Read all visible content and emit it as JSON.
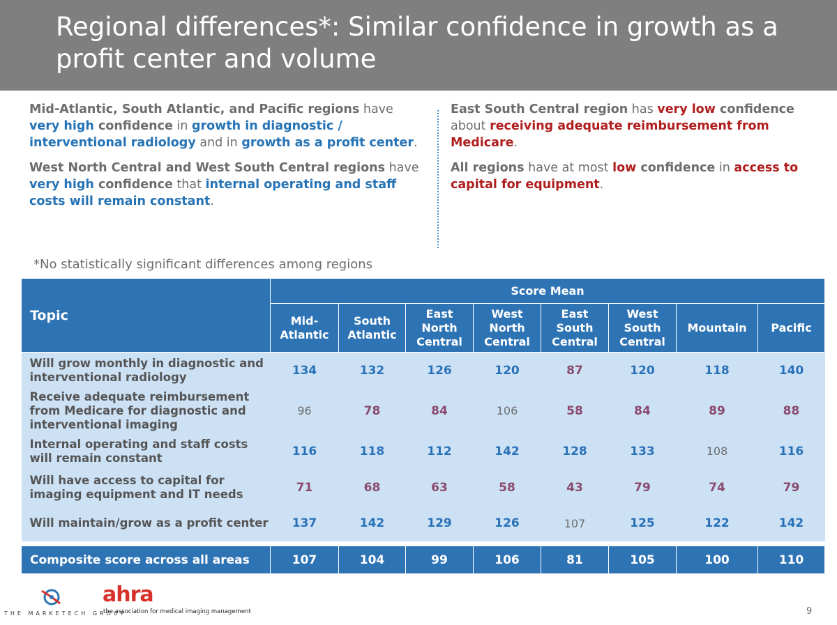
{
  "title": "Regional differences*: Similar confidence in growth as a profit center and volume",
  "left_column": {
    "p1": [
      {
        "t": "Mid-Atlantic, South Atlantic, and Pacific regions",
        "s": "gray-bold"
      },
      {
        "t": " have ",
        "s": "gray"
      },
      {
        "t": "very high",
        "s": "blue"
      },
      {
        "t": " confidence",
        "s": "gray-bold"
      },
      {
        "t": " in ",
        "s": "gray"
      },
      {
        "t": "growth in diagnostic / interventional radiology",
        "s": "blue"
      },
      {
        "t": " and in ",
        "s": "gray"
      },
      {
        "t": "growth as a profit center",
        "s": "blue"
      },
      {
        "t": ".",
        "s": "gray"
      }
    ],
    "p2": [
      {
        "t": "West North Central and West South Central regions",
        "s": "gray-bold"
      },
      {
        "t": " have ",
        "s": "gray"
      },
      {
        "t": "very high",
        "s": "blue"
      },
      {
        "t": " confidence",
        "s": "gray-bold"
      },
      {
        "t": " that ",
        "s": "gray"
      },
      {
        "t": "internal operating and staff costs will remain constant",
        "s": "blue"
      },
      {
        "t": ".",
        "s": "gray"
      }
    ]
  },
  "right_column": {
    "p1": [
      {
        "t": "East South Central region",
        "s": "gray-bold"
      },
      {
        "t": " has ",
        "s": "gray"
      },
      {
        "t": "very low",
        "s": "red"
      },
      {
        "t": " confidence",
        "s": "gray-bold"
      },
      {
        "t": " about ",
        "s": "gray"
      },
      {
        "t": "receiving adequate reimbursement from Medicare",
        "s": "red"
      },
      {
        "t": ".",
        "s": "gray"
      }
    ],
    "p2": [
      {
        "t": "All regions",
        "s": "gray-bold"
      },
      {
        "t": " have at most ",
        "s": "gray"
      },
      {
        "t": "low",
        "s": "red"
      },
      {
        "t": " confidence",
        "s": "gray-bold"
      },
      {
        "t": " in ",
        "s": "gray"
      },
      {
        "t": "access to capital for equipment",
        "s": "red"
      },
      {
        "t": ".",
        "s": "gray"
      }
    ]
  },
  "footnote": "*No statistically significant differences among regions",
  "table": {
    "topic_header": "Topic",
    "group_header": "Score Mean",
    "regions": [
      "Mid-\nAtlantic",
      "South\nAtlantic",
      "East\nNorth\nCentral",
      "West\nNorth\nCentral",
      "East\nSouth\nCentral",
      "West\nSouth\nCentral",
      "Mountain",
      "Pacific"
    ],
    "rows": [
      {
        "topic": "Will grow monthly in diagnostic and interventional radiology",
        "values": [
          "134",
          "132",
          "126",
          "120",
          "87",
          "120",
          "118",
          "140"
        ],
        "levels": [
          "high",
          "high",
          "high",
          "high",
          "low",
          "high",
          "high",
          "high"
        ]
      },
      {
        "topic": "Receive adequate reimbursement from Medicare for diagnostic and interventional imaging",
        "values": [
          "96",
          "78",
          "84",
          "106",
          "58",
          "84",
          "89",
          "88"
        ],
        "levels": [
          "mid",
          "low",
          "low",
          "mid",
          "low",
          "low",
          "low",
          "low"
        ]
      },
      {
        "topic": "Internal operating and staff costs will remain constant",
        "values": [
          "116",
          "118",
          "112",
          "142",
          "128",
          "133",
          "108",
          "116"
        ],
        "levels": [
          "high",
          "high",
          "high",
          "high",
          "high",
          "high",
          "mid",
          "high"
        ]
      },
      {
        "topic": "Will have access to capital for imaging equipment and IT needs",
        "values": [
          "71",
          "68",
          "63",
          "58",
          "43",
          "79",
          "74",
          "79"
        ],
        "levels": [
          "low",
          "low",
          "low",
          "low",
          "low",
          "low",
          "low",
          "low"
        ]
      },
      {
        "topic": "Will maintain/grow as a profit center",
        "values": [
          "137",
          "142",
          "129",
          "126",
          "107",
          "125",
          "122",
          "142"
        ],
        "levels": [
          "high",
          "high",
          "high",
          "high",
          "mid",
          "high",
          "high",
          "high"
        ]
      }
    ],
    "composite": {
      "topic": "Composite score across all areas",
      "values": [
        "107",
        "104",
        "99",
        "106",
        "81",
        "105",
        "100",
        "110"
      ]
    }
  },
  "footer": {
    "marketech": "THE MARKETECH GROUP",
    "ahra": "ahra",
    "ahra_tagline": "the association for medical imaging management",
    "page_number": "9"
  },
  "colors": {
    "header_blue": "#2e74b5",
    "row_blue": "#cde1f5",
    "high": "#2a72b8",
    "low": "#8a4a6e",
    "red": "#b01e1e"
  }
}
